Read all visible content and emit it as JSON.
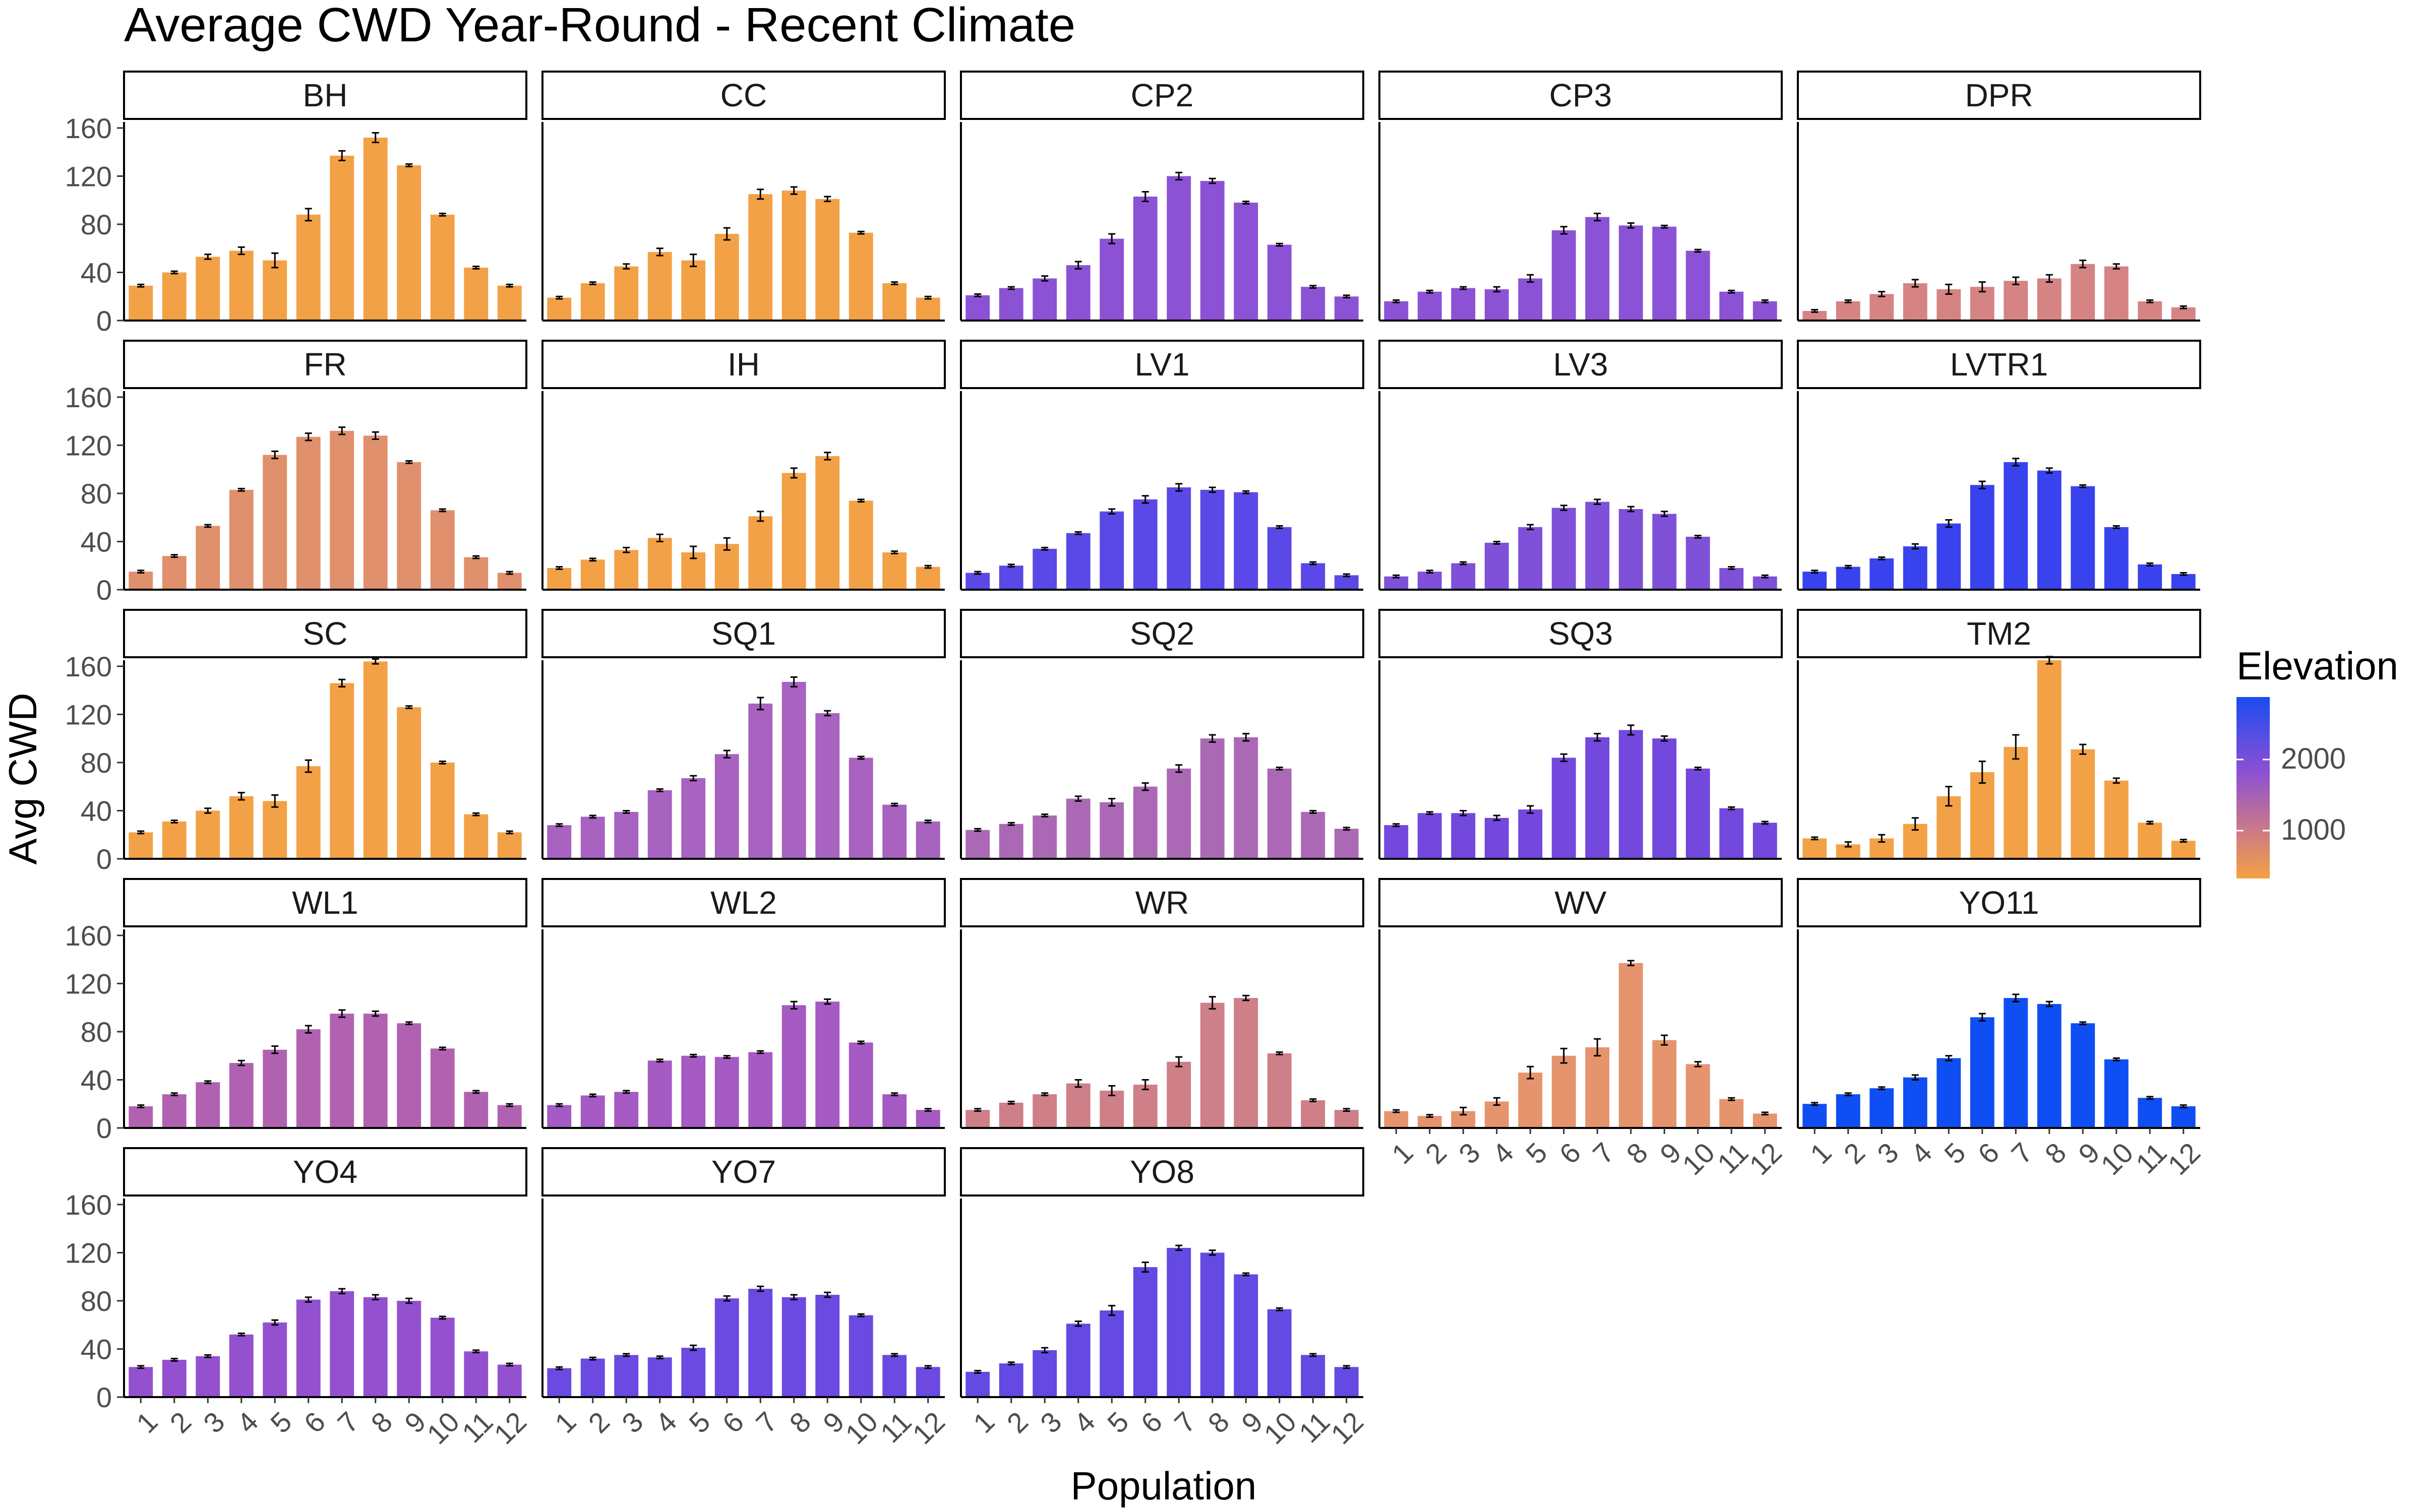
{
  "chart_data": {
    "type": "bar",
    "title": "Average CWD Year-Round - Recent Climate",
    "xlabel": "Population",
    "ylabel": "Avg CWD",
    "ylim": [
      0,
      165
    ],
    "yticks": [
      0,
      40,
      80,
      120,
      160
    ],
    "categories": [
      "1",
      "2",
      "3",
      "4",
      "5",
      "6",
      "7",
      "8",
      "9",
      "10",
      "11",
      "12"
    ],
    "grid": false,
    "legend": {
      "title": "Elevation",
      "position": "right",
      "type": "gradient",
      "ticks": [
        "2000",
        "1000"
      ],
      "colors": [
        "#1a4cf0",
        "#8a4fd6",
        "#c8788a",
        "#f4a142"
      ]
    },
    "panels": [
      {
        "name": "BH",
        "color": "#f3a146",
        "values": [
          29,
          40,
          53,
          58,
          50,
          88,
          137,
          152,
          129,
          88,
          44,
          29
        ],
        "err": [
          1,
          1,
          2,
          3,
          6,
          5,
          4,
          4,
          1,
          1,
          1,
          1
        ]
      },
      {
        "name": "CC",
        "color": "#f3a146",
        "values": [
          19,
          31,
          45,
          57,
          50,
          72,
          105,
          108,
          101,
          73,
          31,
          19
        ],
        "err": [
          1,
          1,
          2,
          3,
          5,
          5,
          4,
          3,
          2,
          1,
          1,
          1
        ]
      },
      {
        "name": "CP2",
        "color": "#8c52d6",
        "values": [
          21,
          27,
          35,
          46,
          68,
          103,
          120,
          116,
          98,
          63,
          28,
          20
        ],
        "err": [
          1,
          1,
          2,
          3,
          4,
          4,
          3,
          2,
          1,
          1,
          1,
          1
        ]
      },
      {
        "name": "CP3",
        "color": "#8c52d6",
        "values": [
          16,
          24,
          27,
          26,
          35,
          75,
          86,
          79,
          78,
          58,
          24,
          16
        ],
        "err": [
          1,
          1,
          1,
          2,
          3,
          3,
          3,
          2,
          1,
          1,
          1,
          1
        ]
      },
      {
        "name": "DPR",
        "color": "#d58383",
        "values": [
          8,
          16,
          22,
          31,
          26,
          28,
          33,
          35,
          47,
          45,
          16,
          11
        ],
        "err": [
          1,
          1,
          2,
          3,
          4,
          4,
          3,
          3,
          3,
          2,
          1,
          1
        ]
      },
      {
        "name": "FR",
        "color": "#e0906c",
        "values": [
          15,
          28,
          53,
          83,
          112,
          127,
          132,
          128,
          106,
          66,
          27,
          14
        ],
        "err": [
          1,
          1,
          1,
          1,
          3,
          3,
          3,
          3,
          1,
          1,
          1,
          1
        ]
      },
      {
        "name": "IH",
        "color": "#f3a146",
        "values": [
          18,
          25,
          33,
          43,
          31,
          38,
          61,
          97,
          111,
          74,
          31,
          19
        ],
        "err": [
          1,
          1,
          2,
          3,
          5,
          5,
          4,
          4,
          3,
          1,
          1,
          1
        ]
      },
      {
        "name": "LV1",
        "color": "#5a49e6",
        "values": [
          14,
          20,
          34,
          47,
          65,
          75,
          85,
          83,
          81,
          52,
          22,
          12
        ],
        "err": [
          1,
          1,
          1,
          1,
          2,
          3,
          3,
          2,
          1,
          1,
          1,
          1
        ]
      },
      {
        "name": "LV3",
        "color": "#7e51d8",
        "values": [
          11,
          15,
          22,
          39,
          52,
          68,
          73,
          67,
          63,
          44,
          18,
          11
        ],
        "err": [
          1,
          1,
          1,
          1,
          2,
          2,
          2,
          2,
          2,
          1,
          1,
          1
        ]
      },
      {
        "name": "LVTR1",
        "color": "#3843ee",
        "values": [
          15,
          19,
          26,
          36,
          55,
          87,
          106,
          99,
          86,
          52,
          21,
          13
        ],
        "err": [
          1,
          1,
          1,
          2,
          3,
          3,
          3,
          2,
          1,
          1,
          1,
          1
        ]
      },
      {
        "name": "SC",
        "color": "#f3a146",
        "values": [
          22,
          31,
          40,
          52,
          48,
          77,
          146,
          164,
          126,
          80,
          37,
          22
        ],
        "err": [
          1,
          1,
          2,
          3,
          5,
          5,
          3,
          2,
          1,
          1,
          1,
          1
        ]
      },
      {
        "name": "SQ1",
        "color": "#a862bf",
        "values": [
          28,
          35,
          39,
          57,
          67,
          87,
          129,
          147,
          121,
          84,
          45,
          31
        ],
        "err": [
          1,
          1,
          1,
          1,
          2,
          3,
          5,
          4,
          2,
          1,
          1,
          1
        ]
      },
      {
        "name": "SQ2",
        "color": "#ab69b5",
        "values": [
          24,
          29,
          36,
          50,
          47,
          60,
          75,
          100,
          101,
          75,
          39,
          25
        ],
        "err": [
          1,
          1,
          1,
          2,
          3,
          3,
          3,
          3,
          3,
          1,
          1,
          1
        ]
      },
      {
        "name": "SQ3",
        "color": "#7348dc",
        "values": [
          28,
          38,
          38,
          34,
          41,
          84,
          101,
          107,
          100,
          75,
          42,
          30
        ],
        "err": [
          1,
          1,
          2,
          2,
          3,
          3,
          3,
          4,
          2,
          1,
          1,
          1
        ]
      },
      {
        "name": "TM2",
        "color": "#f3a146",
        "values": [
          17,
          12,
          17,
          29,
          52,
          72,
          93,
          165,
          91,
          65,
          30,
          15
        ],
        "err": [
          1,
          2,
          3,
          5,
          8,
          9,
          10,
          3,
          4,
          2,
          1,
          1
        ]
      },
      {
        "name": "WL1",
        "color": "#b062b1",
        "values": [
          18,
          28,
          38,
          54,
          65,
          82,
          95,
          95,
          87,
          66,
          30,
          19
        ],
        "err": [
          1,
          1,
          1,
          2,
          3,
          3,
          3,
          2,
          1,
          1,
          1,
          1
        ]
      },
      {
        "name": "WL2",
        "color": "#a55ac4",
        "values": [
          19,
          27,
          30,
          56,
          60,
          59,
          63,
          102,
          105,
          71,
          28,
          15
        ],
        "err": [
          1,
          1,
          1,
          1,
          1,
          1,
          1,
          3,
          2,
          1,
          1,
          1
        ]
      },
      {
        "name": "WR",
        "color": "#ce7f88",
        "values": [
          15,
          21,
          28,
          37,
          31,
          36,
          55,
          104,
          108,
          62,
          23,
          15
        ],
        "err": [
          1,
          1,
          1,
          3,
          4,
          4,
          4,
          5,
          2,
          1,
          1,
          1
        ]
      },
      {
        "name": "WV",
        "color": "#e6946e",
        "values": [
          14,
          10,
          14,
          22,
          46,
          60,
          67,
          137,
          73,
          53,
          24,
          12
        ],
        "err": [
          1,
          1,
          3,
          3,
          5,
          6,
          7,
          2,
          4,
          2,
          1,
          1
        ]
      },
      {
        "name": "YO11",
        "color": "#0f4ef2",
        "values": [
          20,
          28,
          33,
          42,
          58,
          92,
          108,
          103,
          87,
          57,
          25,
          18
        ],
        "err": [
          1,
          1,
          1,
          2,
          2,
          3,
          3,
          2,
          1,
          1,
          1,
          1
        ]
      },
      {
        "name": "YO4",
        "color": "#9351cf",
        "values": [
          25,
          31,
          34,
          52,
          62,
          81,
          88,
          83,
          80,
          66,
          38,
          27
        ],
        "err": [
          1,
          1,
          1,
          1,
          2,
          2,
          2,
          2,
          2,
          1,
          1,
          1
        ]
      },
      {
        "name": "YO7",
        "color": "#6a4ae0",
        "values": [
          24,
          32,
          35,
          33,
          41,
          82,
          90,
          83,
          85,
          68,
          35,
          25
        ],
        "err": [
          1,
          1,
          1,
          1,
          2,
          2,
          2,
          2,
          2,
          1,
          1,
          1
        ]
      },
      {
        "name": "YO8",
        "color": "#6449e2",
        "values": [
          21,
          28,
          39,
          61,
          72,
          108,
          124,
          120,
          102,
          73,
          35,
          25
        ],
        "err": [
          1,
          1,
          2,
          2,
          4,
          4,
          2,
          2,
          1,
          1,
          1,
          1
        ]
      }
    ]
  }
}
